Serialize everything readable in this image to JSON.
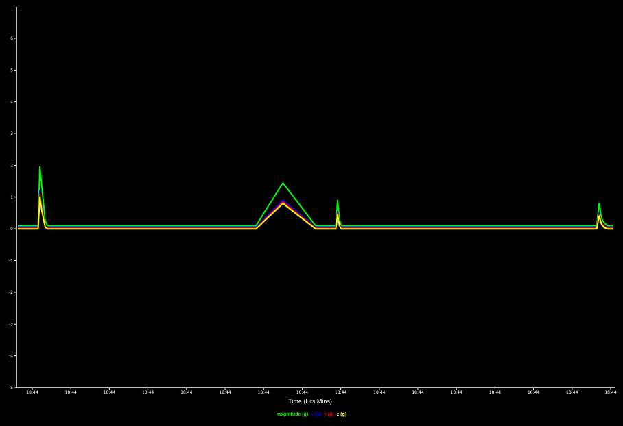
{
  "chart_data": {
    "type": "line",
    "xlabel": "Time (Hrs:Mins)",
    "ylabel": "",
    "ylim": [
      -5,
      6
    ],
    "yticks": [
      6,
      5,
      4,
      3,
      2,
      1,
      0,
      -1,
      -2,
      -3,
      -4,
      -5
    ],
    "x_tick_labels": [
      "18:44",
      "18:44",
      "18:44",
      "18:44",
      "18:44",
      "18:44",
      "18:44",
      "18:44",
      "18:44",
      "18:44",
      "18:44",
      "18:44",
      "18:44",
      "18:44",
      "18:44",
      "18:44"
    ],
    "legend_position": "bottom",
    "x": [
      0,
      1.4,
      3.4,
      3.7,
      4.0,
      4.6,
      5.0,
      5.5,
      8.3,
      11.4,
      11.7,
      12.0,
      12.3,
      12.7,
      14.9,
      16.3,
      18.3,
      18.6,
      18.9,
      19.2,
      19.7,
      28.0,
      29.1,
      29.4,
      29.7,
      30.0,
      30.5,
      40.0,
      44.5,
      50.0,
      52.5,
      53.4,
      53.7,
      54.0,
      54.3,
      54.6,
      55.0,
      56.0,
      60.0,
      70.0,
      80.0,
      90.0,
      97.2,
      97.6,
      98.0,
      98.4,
      99.0,
      99.5,
      100.0
    ],
    "series": [
      {
        "name": "magnitude (g)",
        "color": "#00ff00",
        "values": [
          0.1,
          0.1,
          0.1,
          1.95,
          1.4,
          0.25,
          0.1,
          0.1,
          0.1,
          0.1,
          0.1,
          0.1,
          0.1,
          0.1,
          0.1,
          0.1,
          0.1,
          0.1,
          0.1,
          0.1,
          0.1,
          0.1,
          0.1,
          0.1,
          0.1,
          0.1,
          0.1,
          0.1,
          1.45,
          0.1,
          0.1,
          0.1,
          0.9,
          0.3,
          0.1,
          0.1,
          0.1,
          0.1,
          0.1,
          0.1,
          0.1,
          0.1,
          0.1,
          0.8,
          0.35,
          0.2,
          0.1,
          0.1,
          0.1
        ]
      },
      {
        "name": "x (g)",
        "color": "#0000ff",
        "values": [
          0.05,
          0.05,
          0.05,
          1.2,
          0.7,
          0.1,
          0.05,
          0.05,
          0.05,
          0.05,
          0.05,
          0.05,
          0.05,
          0.05,
          0.05,
          0.05,
          0.05,
          0.05,
          0.05,
          0.05,
          0.05,
          0.05,
          0.05,
          0.05,
          0.05,
          0.05,
          0.05,
          0.05,
          0.9,
          0.05,
          0.05,
          0.05,
          0.55,
          0.15,
          0.05,
          0.05,
          0.05,
          0.05,
          0.05,
          0.05,
          0.05,
          0.05,
          0.05,
          0.5,
          0.2,
          0.1,
          0.05,
          0.05,
          0.05
        ]
      },
      {
        "name": "y (g)",
        "color": "#ff0000",
        "values": [
          0.02,
          0.02,
          0.02,
          1.1,
          0.65,
          0.08,
          0.02,
          0.02,
          0.02,
          0.02,
          0.02,
          0.02,
          0.02,
          0.02,
          0.02,
          0.02,
          0.02,
          0.02,
          0.02,
          0.02,
          0.02,
          0.02,
          0.02,
          0.02,
          0.02,
          0.02,
          0.02,
          0.02,
          0.85,
          0.02,
          0.02,
          0.02,
          0.5,
          0.12,
          0.02,
          0.02,
          0.02,
          0.02,
          0.02,
          0.02,
          0.02,
          0.02,
          0.02,
          0.45,
          0.18,
          0.08,
          0.02,
          0.02,
          0.02
        ]
      },
      {
        "name": "z (g)",
        "color": "#ffff00",
        "values": [
          0.0,
          0.0,
          0.0,
          1.0,
          0.6,
          0.05,
          0.0,
          0.0,
          0.0,
          0.0,
          0.0,
          0.0,
          0.0,
          0.0,
          0.0,
          0.0,
          0.0,
          0.0,
          0.0,
          0.0,
          0.0,
          0.0,
          0.0,
          0.0,
          0.0,
          0.0,
          0.0,
          0.0,
          0.8,
          0.0,
          0.0,
          0.0,
          0.45,
          0.1,
          0.0,
          0.0,
          0.0,
          0.0,
          0.0,
          0.0,
          0.0,
          0.0,
          0.0,
          0.4,
          0.15,
          0.05,
          0.0,
          0.0,
          0.0
        ]
      }
    ]
  }
}
